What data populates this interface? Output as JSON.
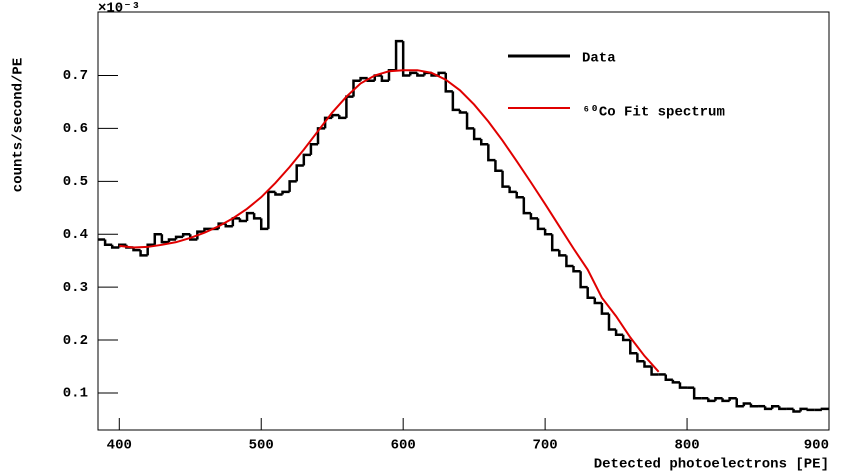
{
  "chart_data": {
    "type": "histogram",
    "x_label": "Detected photoelectrons [PE]",
    "y_label": "counts/second/PE",
    "y_multiplier": "×10⁻³",
    "xlim": [
      385,
      900
    ],
    "ylim": [
      0.03,
      0.82
    ],
    "xticks": [
      400,
      500,
      600,
      700,
      800,
      900
    ],
    "yticks": [
      0.1,
      0.2,
      0.3,
      0.4,
      0.5,
      0.6,
      0.7
    ],
    "bins": [
      385,
      390,
      395,
      400,
      405,
      410,
      415,
      420,
      425,
      430,
      435,
      440,
      445,
      450,
      455,
      460,
      465,
      470,
      475,
      480,
      485,
      490,
      495,
      500,
      505,
      510,
      515,
      520,
      525,
      530,
      535,
      540,
      545,
      550,
      555,
      560,
      565,
      570,
      575,
      580,
      585,
      590,
      595,
      600,
      605,
      610,
      615,
      620,
      625,
      630,
      635,
      640,
      645,
      650,
      655,
      660,
      665,
      670,
      675,
      680,
      685,
      690,
      695,
      700,
      705,
      710,
      715,
      720,
      725,
      730,
      735,
      740,
      745,
      750,
      755,
      760,
      765,
      770,
      775,
      780,
      785,
      790,
      795,
      800,
      805,
      810,
      815,
      820,
      825,
      830,
      835,
      840,
      845,
      850,
      855,
      860,
      865,
      870,
      875,
      880,
      885,
      890,
      895,
      900
    ],
    "series": [
      {
        "name": "Data",
        "color": "#000000",
        "values": [
          0.39,
          0.38,
          0.375,
          0.38,
          0.375,
          0.37,
          0.36,
          0.38,
          0.4,
          0.385,
          0.39,
          0.395,
          0.4,
          0.39,
          0.405,
          0.41,
          0.41,
          0.42,
          0.415,
          0.43,
          0.425,
          0.44,
          0.43,
          0.41,
          0.48,
          0.475,
          0.48,
          0.5,
          0.53,
          0.55,
          0.57,
          0.6,
          0.62,
          0.625,
          0.62,
          0.66,
          0.69,
          0.695,
          0.69,
          0.7,
          0.69,
          0.71,
          0.765,
          0.7,
          0.705,
          0.7,
          0.705,
          0.7,
          0.705,
          0.67,
          0.635,
          0.63,
          0.6,
          0.58,
          0.57,
          0.54,
          0.52,
          0.49,
          0.48,
          0.47,
          0.44,
          0.43,
          0.41,
          0.4,
          0.37,
          0.36,
          0.34,
          0.33,
          0.3,
          0.28,
          0.27,
          0.25,
          0.22,
          0.21,
          0.2,
          0.175,
          0.16,
          0.15,
          0.135,
          0.135,
          0.125,
          0.12,
          0.11,
          0.11,
          0.09,
          0.09,
          0.085,
          0.09,
          0.085,
          0.09,
          0.075,
          0.08,
          0.075,
          0.075,
          0.07,
          0.075,
          0.07,
          0.07,
          0.065,
          0.07,
          0.068,
          0.068,
          0.07
        ]
      },
      {
        "name": "⁶⁰Co Fit spectrum",
        "color": "#e00000",
        "type": "line",
        "x": [
          400,
          410,
          420,
          430,
          440,
          450,
          460,
          470,
          480,
          490,
          500,
          510,
          520,
          530,
          540,
          550,
          560,
          570,
          580,
          590,
          600,
          610,
          620,
          630,
          640,
          650,
          660,
          670,
          680,
          690,
          700,
          710,
          720,
          730,
          740,
          750,
          760,
          770,
          780
        ],
        "values": [
          0.378,
          0.375,
          0.376,
          0.38,
          0.385,
          0.393,
          0.403,
          0.415,
          0.43,
          0.448,
          0.47,
          0.497,
          0.527,
          0.56,
          0.595,
          0.63,
          0.66,
          0.685,
          0.7,
          0.708,
          0.71,
          0.71,
          0.705,
          0.692,
          0.672,
          0.645,
          0.613,
          0.577,
          0.538,
          0.498,
          0.457,
          0.415,
          0.373,
          0.333,
          0.28,
          0.245,
          0.205,
          0.17,
          0.14
        ]
      }
    ]
  }
}
